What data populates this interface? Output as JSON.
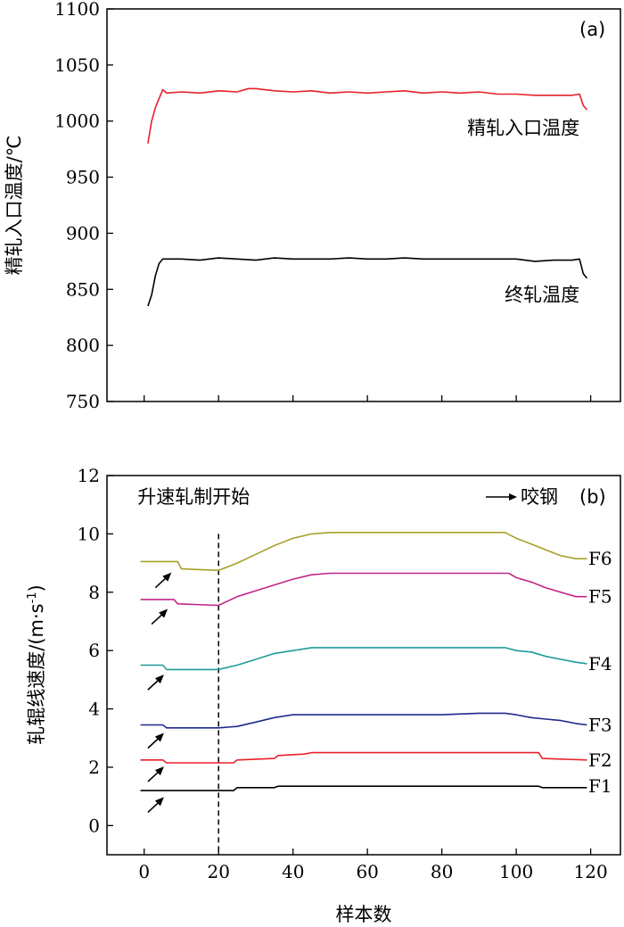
{
  "chart_data": [
    {
      "type": "line",
      "panel_label": "(a)",
      "ylabel": "精轧入口温度/℃",
      "ylim": [
        750,
        1100
      ],
      "yticks": [
        "750",
        "800",
        "850",
        "900",
        "950",
        "1000",
        "1050",
        "1100"
      ],
      "xlim": [
        -10,
        128
      ],
      "x_ticks_shown": false,
      "series": [
        {
          "name": "精轧入口温度",
          "color": "#e8202a",
          "x": [
            1,
            2,
            3,
            4,
            5,
            6,
            10,
            15,
            20,
            25,
            28,
            30,
            35,
            40,
            45,
            50,
            55,
            60,
            65,
            70,
            75,
            80,
            85,
            90,
            95,
            100,
            105,
            110,
            115,
            117,
            118,
            119
          ],
          "y": [
            980,
            1000,
            1012,
            1020,
            1028,
            1025,
            1026,
            1025,
            1027,
            1026,
            1029,
            1029,
            1027,
            1026,
            1027,
            1025,
            1026,
            1025,
            1026,
            1027,
            1025,
            1026,
            1025,
            1026,
            1024,
            1024,
            1023,
            1023,
            1023,
            1024,
            1014,
            1010
          ]
        },
        {
          "name": "终轧温度",
          "color": "#000000",
          "x": [
            1,
            2,
            3,
            4,
            5,
            6,
            10,
            15,
            20,
            25,
            30,
            35,
            40,
            45,
            50,
            55,
            60,
            65,
            70,
            75,
            80,
            85,
            90,
            95,
            100,
            105,
            110,
            115,
            117,
            118,
            119
          ],
          "y": [
            835,
            845,
            862,
            873,
            877,
            877,
            877,
            876,
            878,
            877,
            876,
            878,
            877,
            877,
            877,
            878,
            877,
            877,
            878,
            877,
            877,
            877,
            877,
            877,
            877,
            875,
            876,
            876,
            877,
            864,
            860
          ]
        }
      ],
      "annotations": [
        {
          "text": "精轧入口温度",
          "x": 117,
          "y": 994
        },
        {
          "text": "终轧温度",
          "x": 117,
          "y": 845
        }
      ]
    },
    {
      "type": "line",
      "panel_label": "(b)",
      "ylabel": "轧辊线速度/(m·s",
      "ylabel_sup": "-1",
      "ylabel_close": ")",
      "xlabel": "样本数",
      "ylim": [
        -1,
        12
      ],
      "yticks": [
        "0",
        "2",
        "4",
        "6",
        "8",
        "10",
        "12"
      ],
      "xlim": [
        -10,
        128
      ],
      "xticks": [
        "0",
        "20",
        "40",
        "60",
        "80",
        "100",
        "120"
      ],
      "vline": {
        "x": 20,
        "label": "升速轧制开始"
      },
      "legend": {
        "text": "咬钢",
        "position": "top-right"
      },
      "series": [
        {
          "name": "F1",
          "color": "#000000",
          "x": [
            -1,
            24,
            25,
            35,
            36,
            106,
            107,
            119
          ],
          "y": [
            1.2,
            1.2,
            1.3,
            1.3,
            1.35,
            1.35,
            1.3,
            1.3
          ]
        },
        {
          "name": "F2",
          "color": "#e8202a",
          "x": [
            -1,
            5,
            6,
            24,
            25,
            35,
            36,
            43,
            45,
            106,
            107,
            119
          ],
          "y": [
            2.25,
            2.25,
            2.15,
            2.15,
            2.25,
            2.3,
            2.4,
            2.45,
            2.5,
            2.5,
            2.3,
            2.25
          ]
        },
        {
          "name": "F3",
          "color": "#1f2a8c",
          "x": [
            -1,
            5,
            6,
            20,
            25,
            30,
            35,
            40,
            45,
            50,
            60,
            70,
            80,
            90,
            97,
            100,
            104,
            108,
            112,
            116,
            119
          ],
          "y": [
            3.45,
            3.45,
            3.35,
            3.35,
            3.4,
            3.55,
            3.7,
            3.8,
            3.8,
            3.8,
            3.8,
            3.8,
            3.8,
            3.85,
            3.85,
            3.8,
            3.7,
            3.65,
            3.6,
            3.5,
            3.45
          ]
        },
        {
          "name": "F4",
          "color": "#1f9a9a",
          "x": [
            -1,
            5,
            6,
            20,
            25,
            30,
            35,
            40,
            45,
            50,
            60,
            70,
            80,
            90,
            97,
            100,
            104,
            108,
            112,
            116,
            119
          ],
          "y": [
            5.5,
            5.5,
            5.35,
            5.35,
            5.5,
            5.7,
            5.9,
            6.0,
            6.1,
            6.1,
            6.1,
            6.1,
            6.1,
            6.1,
            6.1,
            6.0,
            5.95,
            5.8,
            5.7,
            5.6,
            5.55
          ]
        },
        {
          "name": "F5",
          "color": "#c2268a",
          "x": [
            -1,
            8,
            9,
            20,
            25,
            30,
            35,
            40,
            45,
            50,
            60,
            70,
            80,
            90,
            98,
            100,
            104,
            108,
            112,
            116,
            119
          ],
          "y": [
            7.75,
            7.75,
            7.6,
            7.55,
            7.85,
            8.05,
            8.25,
            8.45,
            8.6,
            8.65,
            8.65,
            8.65,
            8.65,
            8.65,
            8.65,
            8.5,
            8.35,
            8.15,
            8.0,
            7.85,
            7.85
          ]
        },
        {
          "name": "F6",
          "color": "#a8a12a",
          "x": [
            -1,
            9,
            10,
            20,
            25,
            30,
            35,
            40,
            45,
            50,
            60,
            70,
            80,
            90,
            97,
            100,
            104,
            108,
            112,
            116,
            119
          ],
          "y": [
            9.05,
            9.05,
            8.8,
            8.75,
            9.0,
            9.3,
            9.6,
            9.85,
            10.0,
            10.05,
            10.05,
            10.05,
            10.05,
            10.05,
            10.05,
            9.85,
            9.65,
            9.45,
            9.25,
            9.15,
            9.15
          ]
        }
      ],
      "series_labels": [
        {
          "text": "F1",
          "y": 1.35
        },
        {
          "text": "F2",
          "y": 2.25
        },
        {
          "text": "F3",
          "y": 3.45
        },
        {
          "text": "F4",
          "y": 5.55
        },
        {
          "text": "F5",
          "y": 7.85
        },
        {
          "text": "F6",
          "y": 9.15
        }
      ],
      "arrows": [
        {
          "x": 1,
          "y": 0.7
        },
        {
          "x": 1,
          "y": 1.75
        },
        {
          "x": 1,
          "y": 2.9
        },
        {
          "x": 1,
          "y": 4.9
        },
        {
          "x": 2,
          "y": 7.15
        },
        {
          "x": 3,
          "y": 8.4
        }
      ]
    }
  ]
}
